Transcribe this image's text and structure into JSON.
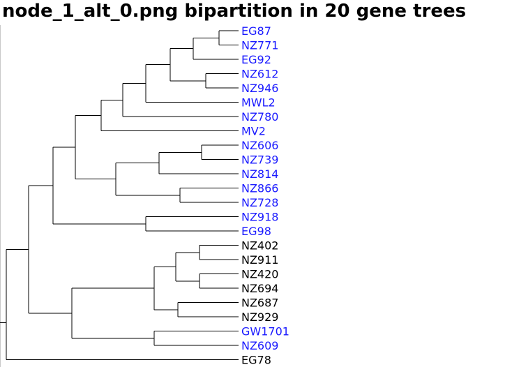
{
  "title": "node_1_alt_0.png bipartition in 20 gene trees",
  "colors": {
    "highlight": "#1a1aff",
    "normal": "#000000",
    "branch": "#000000"
  },
  "tree": {
    "children": [
      {
        "children": [
          {
            "children": [
              {
                "children": [
                  {
                    "children": [
                      {
                        "children": [
                          {
                            "children": [
                              {
                                "children": [
                                  {
                                    "label": "EG87",
                                    "highlight": true
                                  },
                                  {
                                    "label": "NZ771",
                                    "highlight": true
                                  }
                                ]
                              },
                              {
                                "label": "EG92",
                                "highlight": true
                              }
                            ]
                          },
                          {
                            "children": [
                              {
                                "label": "NZ612",
                                "highlight": true
                              },
                              {
                                "label": "NZ946",
                                "highlight": true
                              }
                            ]
                          }
                        ]
                      },
                      {
                        "label": "MWL2",
                        "highlight": true
                      }
                    ]
                  },
                  {
                    "label": "NZ780",
                    "highlight": true
                  }
                ]
              },
              {
                "label": "MV2",
                "highlight": true
              }
            ]
          },
          {
            "children": [
              {
                "children": [
                  {
                    "children": [
                      {
                        "label": "NZ606",
                        "highlight": true
                      },
                      {
                        "label": "NZ739",
                        "highlight": true
                      }
                    ]
                  },
                  {
                    "label": "NZ814",
                    "highlight": true
                  }
                ]
              },
              {
                "children": [
                  {
                    "label": "NZ866",
                    "highlight": true
                  },
                  {
                    "label": "NZ728",
                    "highlight": true
                  }
                ]
              }
            ]
          }
        ]
      },
      {
        "children": [
          {
            "label": "NZ918",
            "highlight": true
          },
          {
            "label": "EG98",
            "highlight": true
          }
        ]
      }
    ]
  },
  "outgroup": {
    "children": [
      {
        "children": [
          {
            "children": [
              {
                "children": [
                  {
                    "label": "NZ402",
                    "highlight": false
                  },
                  {
                    "label": "NZ911",
                    "highlight": false
                  }
                ]
              },
              {
                "children": [
                  {
                    "label": "NZ420",
                    "highlight": false
                  },
                  {
                    "label": "NZ694",
                    "highlight": false
                  }
                ]
              }
            ]
          },
          {
            "children": [
              {
                "label": "NZ687",
                "highlight": false
              },
              {
                "label": "NZ929",
                "highlight": false
              }
            ]
          }
        ]
      },
      {
        "children": [
          {
            "label": "GW1701",
            "highlight": true
          },
          {
            "label": "NZ609",
            "highlight": true
          }
        ]
      }
    ]
  },
  "root_leaf": {
    "label": "EG78",
    "highlight": false
  }
}
